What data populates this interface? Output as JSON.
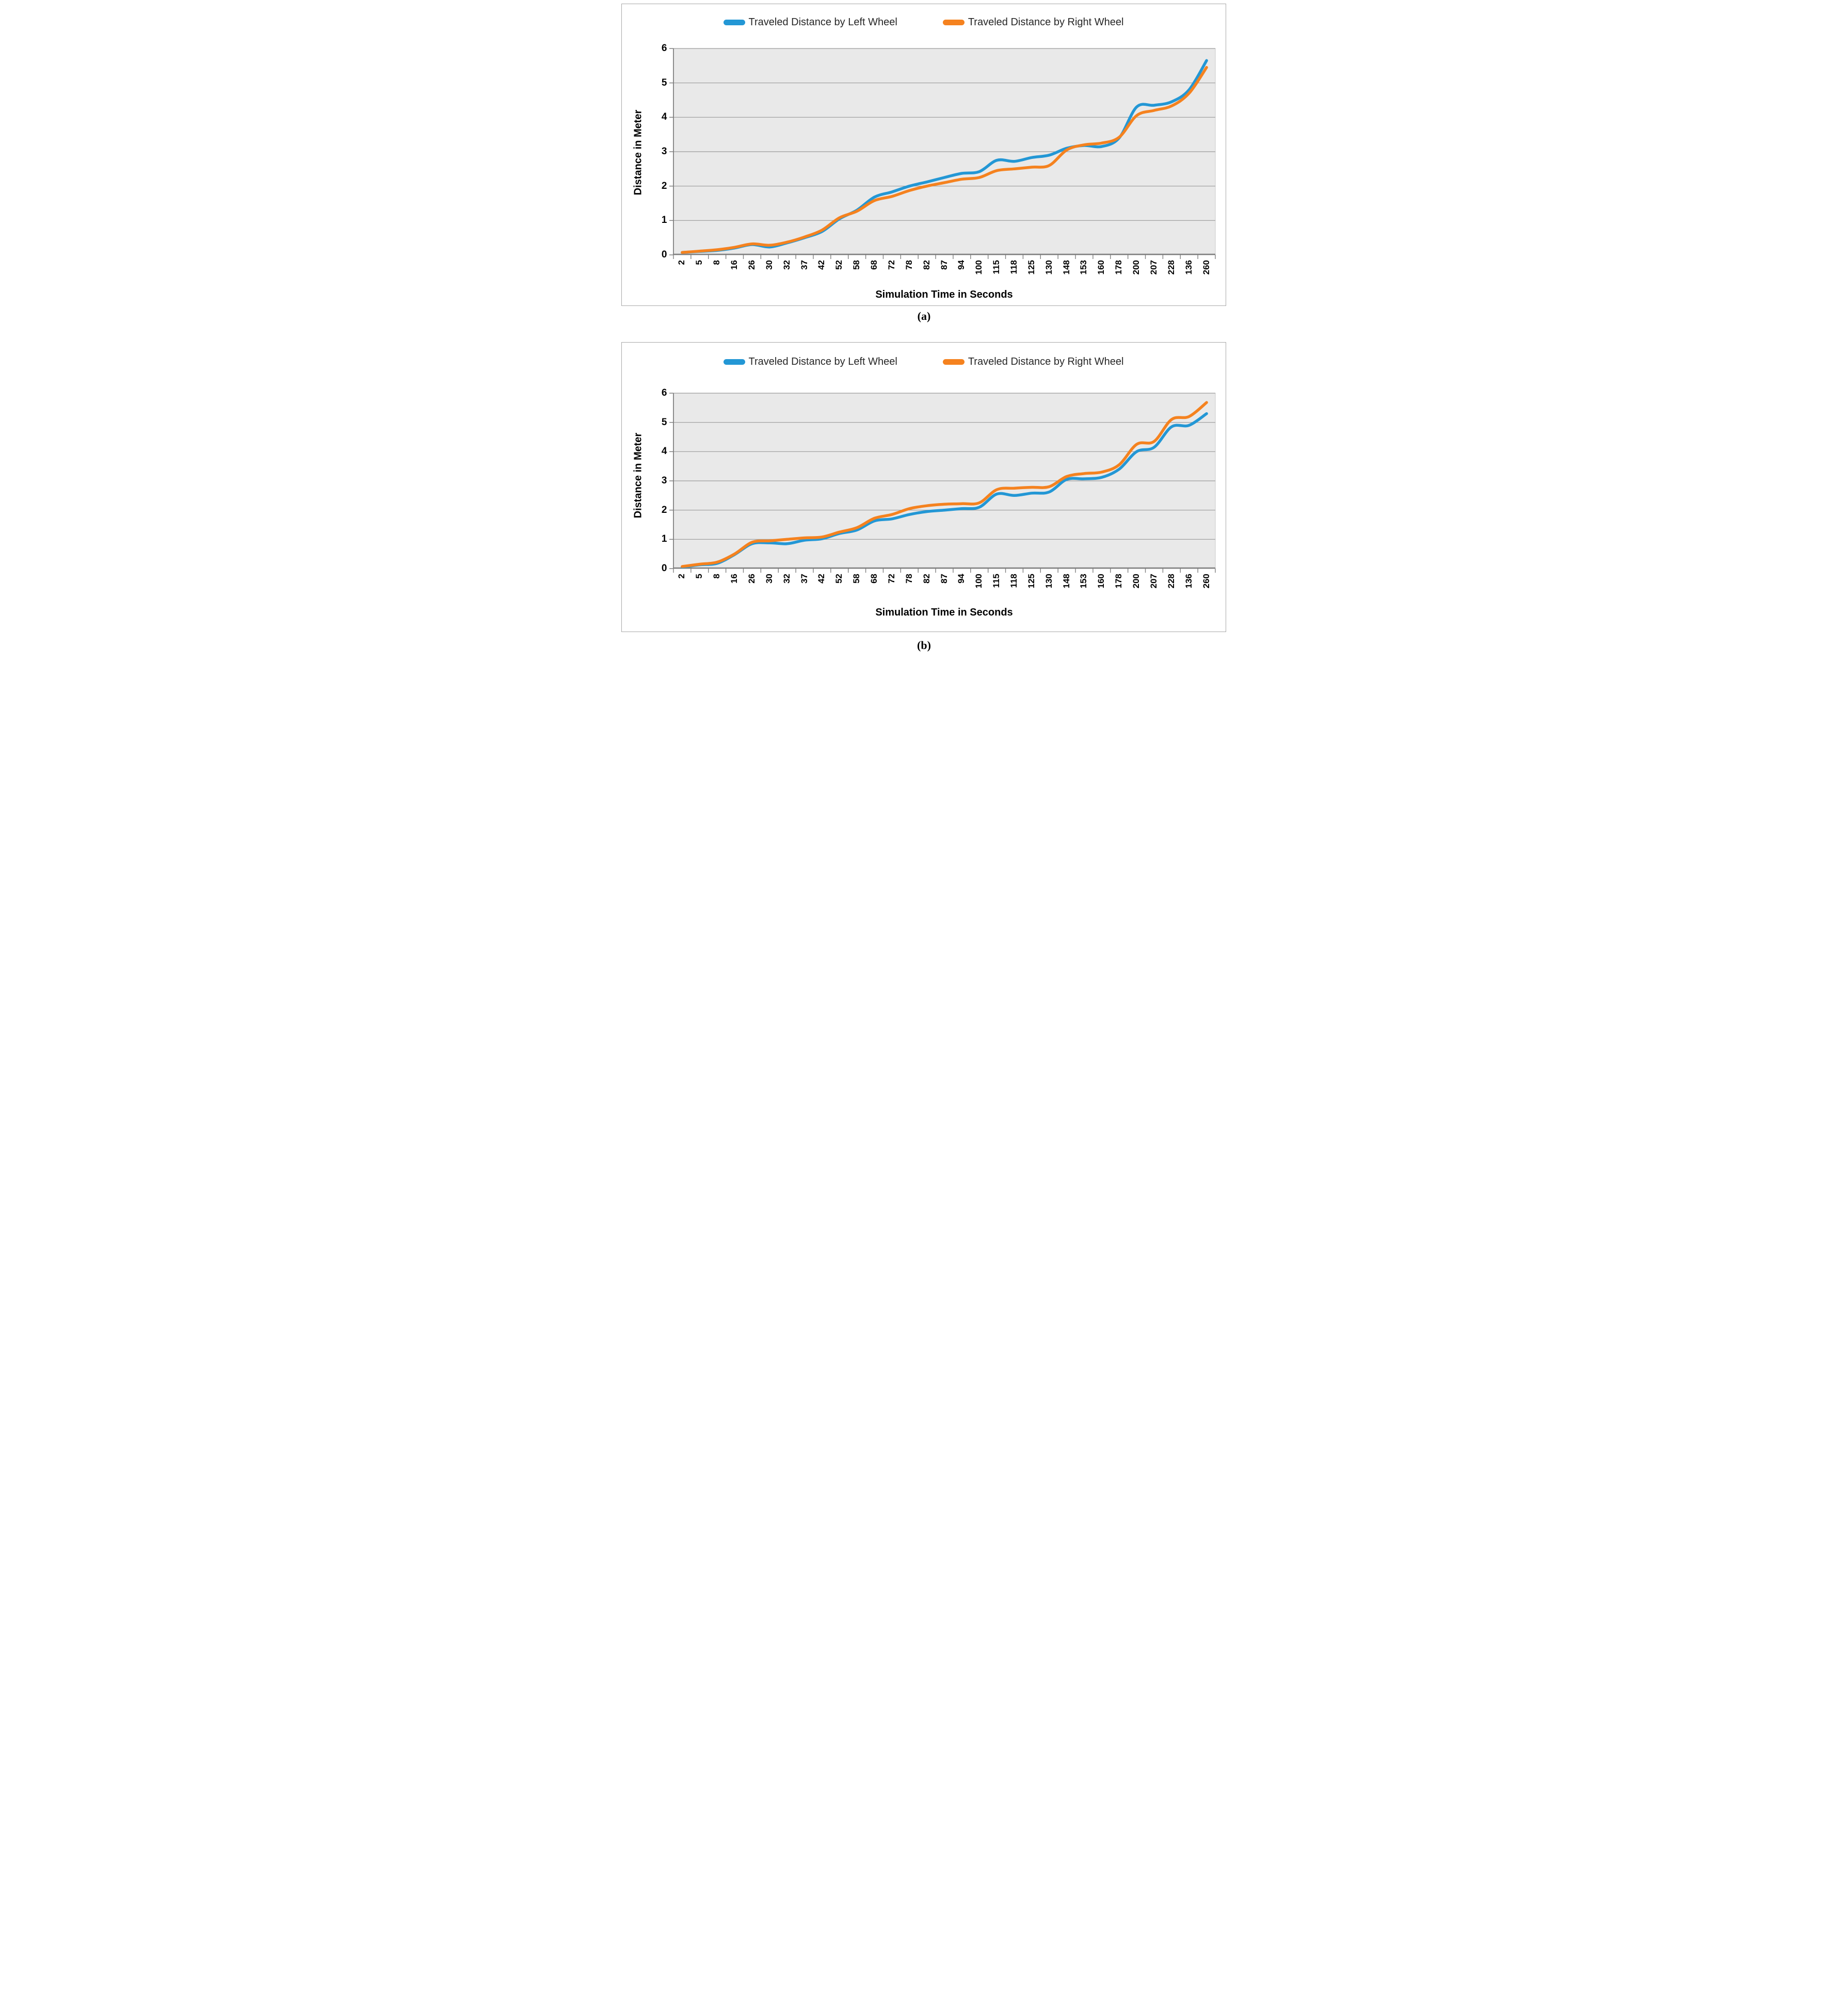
{
  "figure": {
    "description": "Two stacked line charts comparing traveled distance of left and right wheels over simulation time",
    "captions": [
      "(a)",
      "(b)"
    ]
  },
  "colors": {
    "plot_bg": "#E9E9E9",
    "grid": "#9A9A9A",
    "axis": "#7F7F7F",
    "frame": "#A9A9A9",
    "left_wheel": "#2397D5",
    "right_wheel": "#F5821F"
  },
  "chart_data": [
    {
      "type": "line",
      "caption": "(a)",
      "xlabel": "Simulation Time in Seconds",
      "ylabel": "Distance in Meter",
      "ylim": [
        0,
        6
      ],
      "yticks": [
        0,
        1,
        2,
        3,
        4,
        5,
        6
      ],
      "grid": true,
      "legend_position": "top",
      "categories": [
        "2",
        "5",
        "8",
        "16",
        "26",
        "30",
        "32",
        "37",
        "42",
        "52",
        "58",
        "68",
        "72",
        "78",
        "82",
        "87",
        "94",
        "100",
        "115",
        "118",
        "125",
        "130",
        "148",
        "153",
        "160",
        "178",
        "200",
        "207",
        "228",
        "136",
        "260"
      ],
      "series": [
        {
          "name": "Traveled Distance by Left Wheel",
          "color": "#2397D5",
          "values": [
            0.07,
            0.1,
            0.13,
            0.2,
            0.3,
            0.23,
            0.35,
            0.5,
            0.68,
            1.05,
            1.3,
            1.68,
            1.83,
            2.0,
            2.12,
            2.25,
            2.37,
            2.42,
            2.75,
            2.72,
            2.83,
            2.9,
            3.1,
            3.18,
            3.15,
            3.4,
            4.3,
            4.35,
            4.45,
            4.8,
            5.65
          ]
        },
        {
          "name": "Traveled Distance by Right Wheel",
          "color": "#F5821F",
          "values": [
            0.07,
            0.11,
            0.15,
            0.22,
            0.32,
            0.28,
            0.37,
            0.52,
            0.72,
            1.08,
            1.27,
            1.58,
            1.7,
            1.87,
            2.0,
            2.1,
            2.2,
            2.25,
            2.45,
            2.5,
            2.55,
            2.6,
            3.05,
            3.2,
            3.25,
            3.42,
            4.05,
            4.2,
            4.33,
            4.7,
            5.45
          ]
        }
      ]
    },
    {
      "type": "line",
      "caption": "(b)",
      "xlabel": "Simulation Time in Seconds",
      "ylabel": "Distance in Meter",
      "ylim": [
        0,
        6
      ],
      "yticks": [
        0,
        1,
        2,
        3,
        4,
        5,
        6
      ],
      "grid": true,
      "legend_position": "top",
      "categories": [
        "2",
        "5",
        "8",
        "16",
        "26",
        "30",
        "32",
        "37",
        "42",
        "52",
        "58",
        "68",
        "72",
        "78",
        "82",
        "87",
        "94",
        "100",
        "115",
        "118",
        "125",
        "130",
        "148",
        "153",
        "160",
        "178",
        "200",
        "207",
        "228",
        "136",
        "260"
      ],
      "series": [
        {
          "name": "Traveled Distance by Left Wheel",
          "color": "#2397D5",
          "values": [
            0.05,
            0.13,
            0.18,
            0.48,
            0.85,
            0.88,
            0.85,
            0.97,
            1.02,
            1.2,
            1.32,
            1.63,
            1.7,
            1.85,
            1.95,
            2.0,
            2.05,
            2.1,
            2.55,
            2.5,
            2.58,
            2.62,
            3.05,
            3.07,
            3.12,
            3.4,
            4.0,
            4.15,
            4.85,
            4.9,
            5.3
          ]
        },
        {
          "name": "Traveled Distance by Right Wheel",
          "color": "#F5821F",
          "values": [
            0.07,
            0.15,
            0.22,
            0.5,
            0.9,
            0.95,
            1.0,
            1.05,
            1.08,
            1.25,
            1.4,
            1.72,
            1.85,
            2.05,
            2.15,
            2.2,
            2.22,
            2.25,
            2.7,
            2.75,
            2.78,
            2.8,
            3.15,
            3.25,
            3.3,
            3.55,
            4.25,
            4.35,
            5.1,
            5.2,
            5.68
          ]
        }
      ]
    }
  ]
}
